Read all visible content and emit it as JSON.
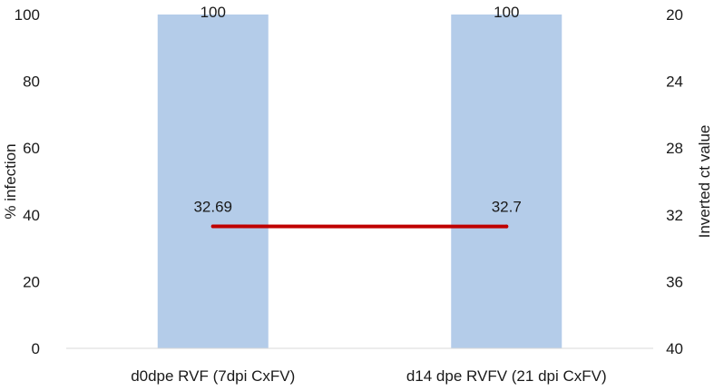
{
  "chart_data": {
    "type": "bar",
    "categories": [
      "d0dpe RVF (7dpi CxFV)",
      "d14 dpe RVFV (21 dpi CxFV)"
    ],
    "series": [
      {
        "name": "% infection",
        "type": "bar",
        "axis": "left",
        "values": [
          100,
          100
        ],
        "labels": [
          "100",
          "100"
        ],
        "color": "#b4cce9"
      },
      {
        "name": "Inverted ct value",
        "type": "line",
        "axis": "right",
        "values": [
          32.69,
          32.7
        ],
        "labels": [
          "32.69",
          "32.7"
        ],
        "color": "#c00000"
      }
    ],
    "ylabel": "% infection",
    "y2label": "Inverted ct value",
    "ylim": [
      0,
      100
    ],
    "yticks": [
      0,
      20,
      40,
      60,
      80,
      100
    ],
    "y2lim": [
      40,
      20
    ],
    "y2ticks": [
      40,
      36,
      32,
      28,
      24,
      20
    ],
    "y2_inverted": true,
    "grid": false
  }
}
